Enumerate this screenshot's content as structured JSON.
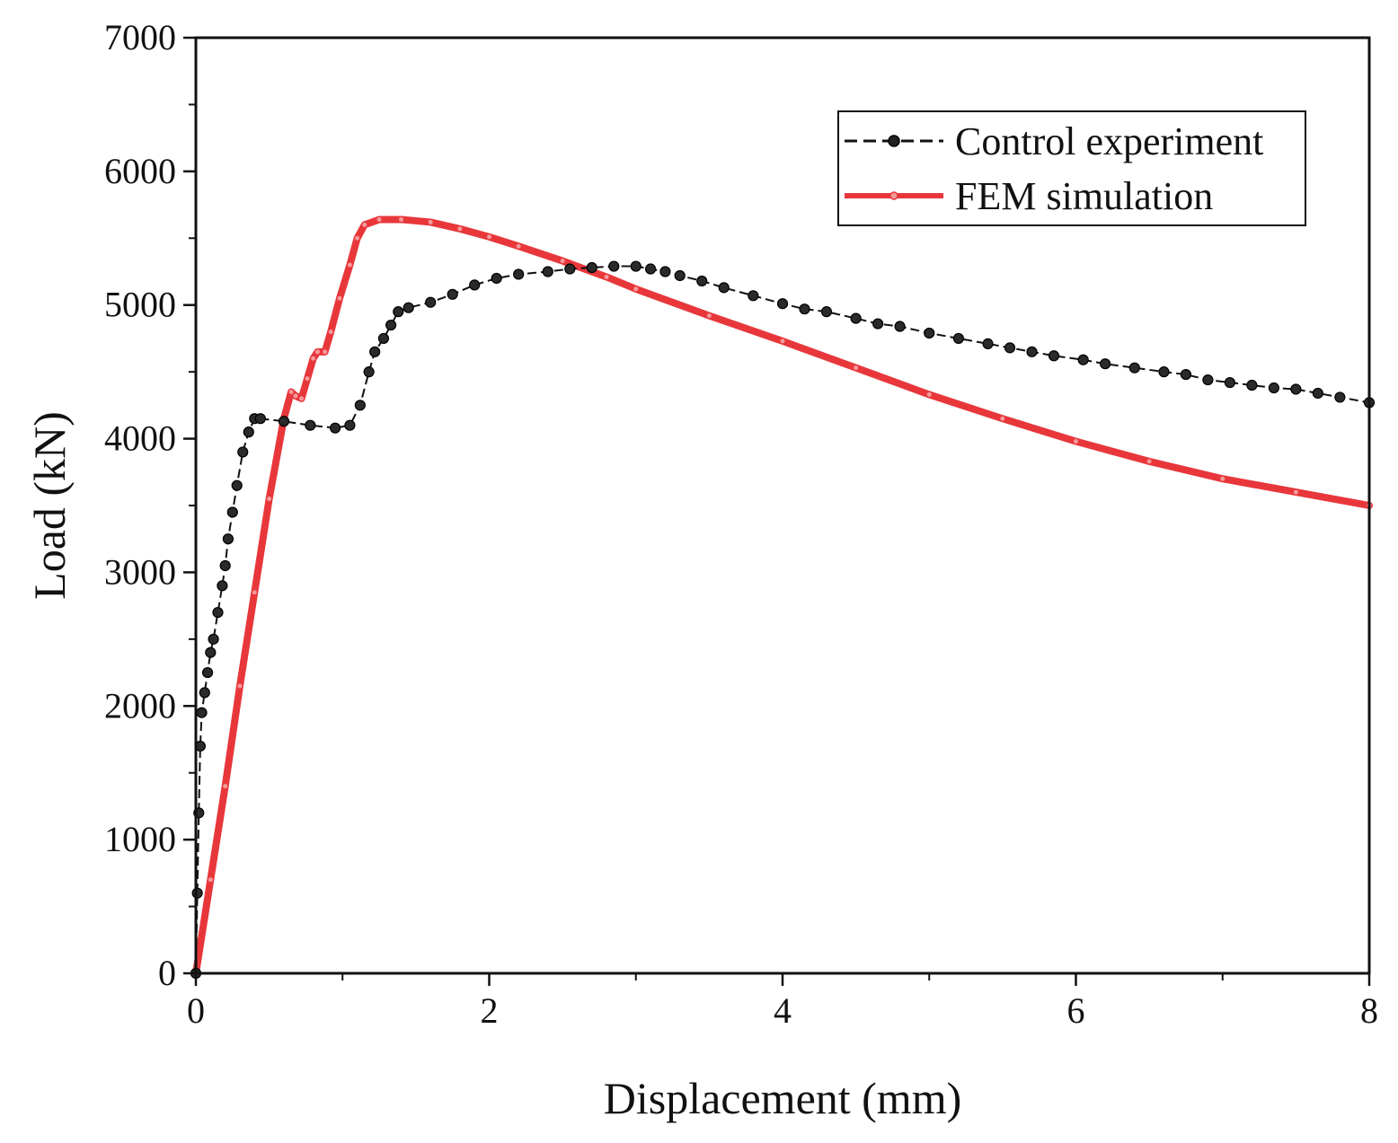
{
  "chart_data": {
    "type": "line",
    "title": "",
    "xlabel": "Displacement (mm)",
    "ylabel": "Load (kN)",
    "xlim": [
      0,
      8
    ],
    "ylim": [
      0,
      7000
    ],
    "xticks": [
      0,
      2,
      4,
      6,
      8
    ],
    "yticks": [
      0,
      1000,
      2000,
      3000,
      4000,
      5000,
      6000,
      7000
    ],
    "grid": false,
    "legend_position": "top-right",
    "series": [
      {
        "name": "Control experiment",
        "color": "#111111",
        "style": "dashed-markers",
        "x": [
          0,
          0.01,
          0.02,
          0.03,
          0.04,
          0.06,
          0.08,
          0.1,
          0.12,
          0.15,
          0.18,
          0.2,
          0.22,
          0.25,
          0.28,
          0.32,
          0.36,
          0.4,
          0.44,
          0.6,
          0.78,
          0.95,
          1.05,
          1.12,
          1.18,
          1.22,
          1.28,
          1.33,
          1.38,
          1.45,
          1.6,
          1.75,
          1.9,
          2.05,
          2.2,
          2.4,
          2.55,
          2.7,
          2.85,
          3.0,
          3.1,
          3.2,
          3.3,
          3.45,
          3.6,
          3.8,
          4.0,
          4.15,
          4.3,
          4.5,
          4.65,
          4.8,
          5.0,
          5.2,
          5.4,
          5.55,
          5.7,
          5.85,
          6.05,
          6.2,
          6.4,
          6.6,
          6.75,
          6.9,
          7.05,
          7.2,
          7.35,
          7.5,
          7.65,
          7.8,
          8.0
        ],
        "y": [
          0,
          600,
          1200,
          1700,
          1950,
          2100,
          2250,
          2400,
          2500,
          2700,
          2900,
          3050,
          3250,
          3450,
          3650,
          3900,
          4050,
          4150,
          4150,
          4130,
          4100,
          4080,
          4100,
          4250,
          4500,
          4650,
          4750,
          4850,
          4950,
          4980,
          5020,
          5080,
          5150,
          5200,
          5230,
          5250,
          5270,
          5280,
          5290,
          5290,
          5270,
          5250,
          5220,
          5180,
          5130,
          5070,
          5010,
          4970,
          4950,
          4900,
          4860,
          4840,
          4790,
          4750,
          4710,
          4680,
          4650,
          4620,
          4590,
          4560,
          4530,
          4500,
          4480,
          4440,
          4420,
          4400,
          4380,
          4370,
          4340,
          4310,
          4270
        ]
      },
      {
        "name": "FEM simulation",
        "color": "#e8373b",
        "style": "thick-line",
        "x": [
          0,
          0.1,
          0.2,
          0.3,
          0.4,
          0.5,
          0.6,
          0.65,
          0.68,
          0.72,
          0.76,
          0.8,
          0.83,
          0.88,
          0.92,
          0.98,
          1.05,
          1.1,
          1.15,
          1.25,
          1.4,
          1.6,
          1.8,
          2.0,
          2.2,
          2.5,
          2.8,
          3.0,
          3.5,
          4.0,
          4.5,
          5.0,
          5.5,
          6.0,
          6.5,
          7.0,
          7.5,
          8.0
        ],
        "y": [
          0,
          700,
          1400,
          2150,
          2850,
          3550,
          4150,
          4350,
          4320,
          4300,
          4450,
          4600,
          4650,
          4650,
          4800,
          5050,
          5300,
          5500,
          5600,
          5640,
          5640,
          5620,
          5570,
          5510,
          5440,
          5330,
          5210,
          5120,
          4920,
          4730,
          4530,
          4330,
          4150,
          3980,
          3830,
          3700,
          3600,
          3500
        ]
      }
    ]
  }
}
